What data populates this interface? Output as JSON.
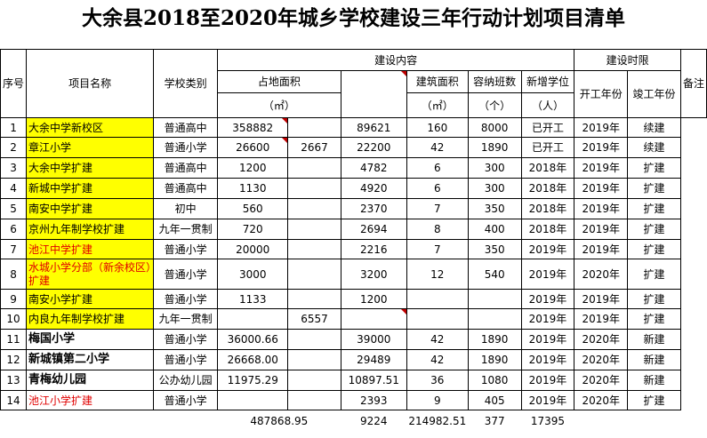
{
  "title": "大余县2018至2020年城乡学校建设三年行动计划项目清单",
  "header": {
    "seq": "序号",
    "name": "项目名称",
    "type": "学校类别",
    "content": "建设内容",
    "period": "建设时限",
    "remark": "备注",
    "land_area": "占地面积",
    "land_unit": "（㎡）",
    "build_area": "建筑面积",
    "build_unit": "（㎡）",
    "classes": "容纳班数",
    "classes_unit": "（个）",
    "seats": "新增学位",
    "seats_unit": "（人）",
    "start": "开工年份",
    "end": "竣工年份"
  },
  "rows": [
    {
      "no": "1",
      "name": "大余中学新校区",
      "type": "普通高中",
      "land": "358882",
      "extra": "",
      "build": "89621",
      "classes": "160",
      "seats": "8000",
      "start": "已开工",
      "end": "2019年",
      "remark": "续建"
    },
    {
      "no": "2",
      "name": "章江小学",
      "type": "普通小学",
      "land": "26600",
      "extra": "2667",
      "build": "22200",
      "classes": "42",
      "seats": "1890",
      "start": "已开工",
      "end": "2019年",
      "remark": "续建"
    },
    {
      "no": "3",
      "name": "大余中学扩建",
      "type": "普通高中",
      "land": "1200",
      "extra": "",
      "build": "4782",
      "classes": "6",
      "seats": "300",
      "start": "2018年",
      "end": "2019年",
      "remark": "扩建"
    },
    {
      "no": "4",
      "name": "新城中学扩建",
      "type": "普通高中",
      "land": "1130",
      "extra": "",
      "build": "4920",
      "classes": "6",
      "seats": "300",
      "start": "2018年",
      "end": "2019年",
      "remark": "扩建"
    },
    {
      "no": "5",
      "name": "南安中学扩建",
      "type": "初中",
      "land": "560",
      "extra": "",
      "build": "2370",
      "classes": "7",
      "seats": "350",
      "start": "2018年",
      "end": "2019年",
      "remark": "扩建"
    },
    {
      "no": "6",
      "name": "京州九年制学校扩建",
      "type": "九年一贯制",
      "land": "720",
      "extra": "",
      "build": "2694",
      "classes": "8",
      "seats": "400",
      "start": "2018年",
      "end": "2019年",
      "remark": "扩建"
    },
    {
      "no": "7",
      "name": "池江中学扩建",
      "type": "普通小学",
      "land": "20000",
      "extra": "",
      "build": "2216",
      "classes": "7",
      "seats": "350",
      "start": "2019年",
      "end": "2019年",
      "remark": "扩建"
    },
    {
      "no": "8",
      "name": "水城小学分部（新余校区）扩建",
      "type": "普通小学",
      "land": "3000",
      "extra": "",
      "build": "3200",
      "classes": "12",
      "seats": "540",
      "start": "2019年",
      "end": "2020年",
      "remark": "扩建"
    },
    {
      "no": "9",
      "name": "南安小学扩建",
      "type": "普通小学",
      "land": "1133",
      "extra": "",
      "build": "1200",
      "classes": "",
      "seats": "",
      "start": "2019年",
      "end": "2019年",
      "remark": "扩建"
    },
    {
      "no": "10",
      "name": "内良九年制学校扩建",
      "type": "九年一贯制",
      "land": "",
      "extra": "6557",
      "build": "",
      "classes": "",
      "seats": "",
      "start": "2019年",
      "end": "2019年",
      "remark": "扩建"
    },
    {
      "no": "11",
      "name": "梅国小学",
      "type": "普通小学",
      "land": "36000.66",
      "extra": "",
      "build": "39000",
      "classes": "42",
      "seats": "1890",
      "start": "2019年",
      "end": "2020年",
      "remark": "新建"
    },
    {
      "no": "12",
      "name": "新城镇第二小学",
      "type": "普通小学",
      "land": "26668.00",
      "extra": "",
      "build": "29489",
      "classes": "42",
      "seats": "1890",
      "start": "2019年",
      "end": "2020年",
      "remark": "新建"
    },
    {
      "no": "13",
      "name": "青梅幼儿园",
      "type": "公办幼儿园",
      "land": "11975.29",
      "extra": "",
      "build": "10897.51",
      "classes": "36",
      "seats": "1080",
      "start": "2019年",
      "end": "2020年",
      "remark": "新建"
    },
    {
      "no": "14",
      "name": "池江小学扩建",
      "type": "普通小学",
      "land": "",
      "extra": "",
      "build": "2393",
      "classes": "9",
      "seats": "405",
      "start": "2019年",
      "end": "2020年",
      "remark": "扩建"
    }
  ],
  "totals": {
    "land": "487868.95",
    "extra": "9224",
    "build": "214982.51",
    "classes": "377",
    "seats": "17395"
  }
}
